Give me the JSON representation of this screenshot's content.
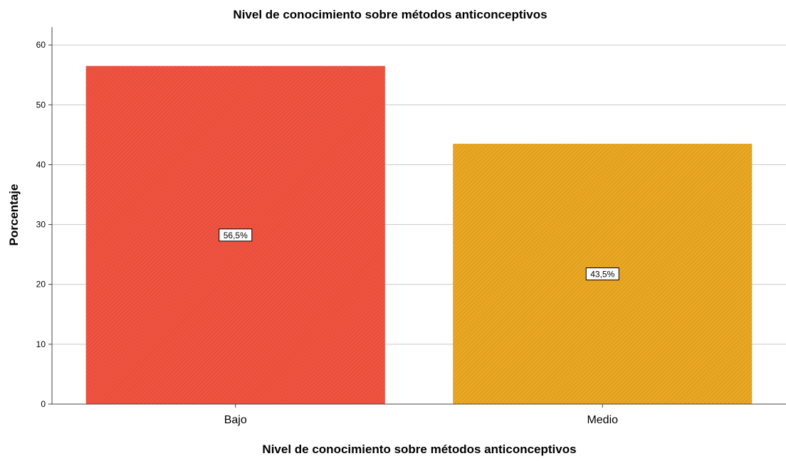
{
  "chart_data": {
    "type": "bar",
    "title": "Nivel de conocimiento sobre métodos anticonceptivos",
    "xlabel": "Nivel de conocimiento sobre métodos anticonceptivos",
    "ylabel": "Porcentaje",
    "categories": [
      "Bajo",
      "Medio"
    ],
    "values": [
      56.5,
      43.5
    ],
    "data_labels": [
      "56,5%",
      "43,5%"
    ],
    "bar_colors": [
      "#f05340",
      "#eaa723"
    ],
    "ylim": [
      0,
      63
    ],
    "yticks": [
      0,
      10,
      20,
      30,
      40,
      50,
      60
    ],
    "grid": true,
    "legend": "none"
  }
}
